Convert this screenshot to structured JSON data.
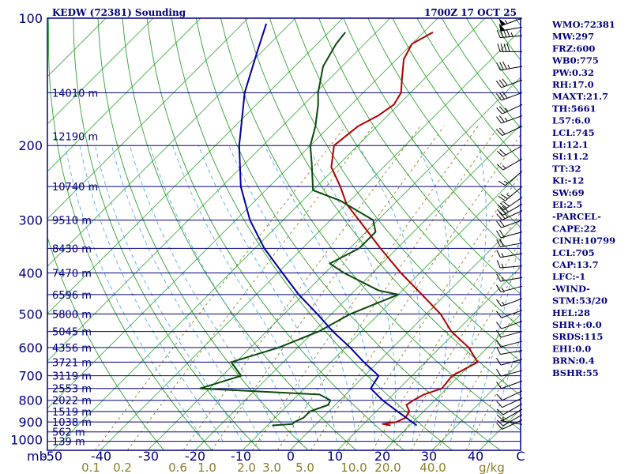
{
  "chart_data": {
    "type": "line",
    "title": "KEDW (72381) Sounding",
    "datetime": "1700Z 17 OCT 25",
    "pressure_ticks": [
      100,
      200,
      300,
      400,
      500,
      600,
      700,
      800,
      900,
      1000
    ],
    "pressure_unit_label": "mb",
    "temperature_ticks": [
      "-50",
      "-40",
      "-30",
      "-20",
      "-10",
      "0",
      "10",
      "20",
      "30",
      "40",
      "C"
    ],
    "mixing_ratio_ticks": [
      "0.1",
      "0.2",
      "0.6",
      "1.0",
      "2.0",
      "3.0",
      "5.0",
      "10.0",
      "20.0",
      "40.0",
      "g/kg"
    ],
    "height_labels": [
      {
        "p": 150,
        "label": "14010 m"
      },
      {
        "p": 190,
        "label": "12190 m"
      },
      {
        "p": 250,
        "label": "10740 m"
      },
      {
        "p": 300,
        "label": "9510 m"
      },
      {
        "p": 350,
        "label": "8430 m"
      },
      {
        "p": 400,
        "label": "7470 m"
      },
      {
        "p": 450,
        "label": "6596 m"
      },
      {
        "p": 500,
        "label": "5800 m"
      },
      {
        "p": 550,
        "label": "5045 m"
      },
      {
        "p": 600,
        "label": "4356 m"
      },
      {
        "p": 650,
        "label": "3721 m"
      },
      {
        "p": 700,
        "label": "3119 m"
      },
      {
        "p": 750,
        "label": "2553 m"
      },
      {
        "p": 800,
        "label": "2022 m"
      },
      {
        "p": 850,
        "label": "1519 m"
      },
      {
        "p": 900,
        "label": "1038 m"
      },
      {
        "p": 950,
        "label": "562 m"
      },
      {
        "p": 1000,
        "label": "139 m"
      }
    ],
    "series": [
      {
        "key": "temperature",
        "color": "#b00000",
        "points": [
          [
            917,
            16.0
          ],
          [
            910,
            14.0
          ],
          [
            900,
            16.5
          ],
          [
            880,
            17.5
          ],
          [
            850,
            17.0
          ],
          [
            820,
            15.0
          ],
          [
            800,
            15.5
          ],
          [
            775,
            16.5
          ],
          [
            750,
            19.0
          ],
          [
            700,
            18.5
          ],
          [
            650,
            21.0
          ],
          [
            600,
            16.0
          ],
          [
            550,
            9.0
          ],
          [
            500,
            3.0
          ],
          [
            450,
            -5.0
          ],
          [
            400,
            -14.0
          ],
          [
            350,
            -23.5
          ],
          [
            300,
            -34.0
          ],
          [
            275,
            -40.0
          ],
          [
            250,
            -45.0
          ],
          [
            225,
            -51.0
          ],
          [
            200,
            -55.0
          ],
          [
            180,
            -54.0
          ],
          [
            170,
            -52.0
          ],
          [
            160,
            -51.0
          ],
          [
            150,
            -52.0
          ],
          [
            140,
            -54.5
          ],
          [
            125,
            -58.5
          ],
          [
            115,
            -60.0
          ],
          [
            108,
            -58.0
          ]
        ]
      },
      {
        "key": "dewpoint",
        "color": "#0a4a0a",
        "points": [
          [
            917,
            -9.0
          ],
          [
            910,
            -5.0
          ],
          [
            900,
            -5.0
          ],
          [
            880,
            -4.0
          ],
          [
            850,
            -4.0
          ],
          [
            820,
            -1.5
          ],
          [
            800,
            -2.0
          ],
          [
            775,
            -5.5
          ],
          [
            750,
            -32.0
          ],
          [
            700,
            -26.0
          ],
          [
            650,
            -31.0
          ],
          [
            600,
            -24.0
          ],
          [
            550,
            -19.0
          ],
          [
            500,
            -16.0
          ],
          [
            450,
            -10.0
          ],
          [
            440,
            -15.0
          ],
          [
            400,
            -26.0
          ],
          [
            380,
            -31.0
          ],
          [
            350,
            -28.0
          ],
          [
            320,
            -28.0
          ],
          [
            300,
            -31.0
          ],
          [
            270,
            -42.0
          ],
          [
            255,
            -50.0
          ],
          [
            220,
            -56.0
          ],
          [
            200,
            -60.0
          ],
          [
            180,
            -63.0
          ],
          [
            160,
            -67.0
          ],
          [
            150,
            -69.5
          ],
          [
            130,
            -74.0
          ],
          [
            115,
            -76.0
          ],
          [
            108,
            -76.5
          ]
        ]
      },
      {
        "key": "parcel",
        "color": "#0000a0",
        "points": [
          [
            917,
            21.5
          ],
          [
            850,
            14.5
          ],
          [
            800,
            9.0
          ],
          [
            750,
            4.0
          ],
          [
            700,
            3.0
          ],
          [
            650,
            -3.0
          ],
          [
            600,
            -9.0
          ],
          [
            550,
            -16.0
          ],
          [
            500,
            -23.0
          ],
          [
            450,
            -31.0
          ],
          [
            400,
            -39.0
          ],
          [
            350,
            -48.0
          ],
          [
            300,
            -57.0
          ],
          [
            250,
            -66.0
          ],
          [
            200,
            -75.0
          ],
          [
            150,
            -85.0
          ],
          [
            120,
            -91.0
          ],
          [
            103,
            -95.0
          ]
        ]
      }
    ],
    "wind_barbs": [
      {
        "p": 100,
        "dir": 250,
        "spd": 55
      },
      {
        "p": 105,
        "dir": 260,
        "spd": 50
      },
      {
        "p": 110,
        "dir": 265,
        "spd": 45
      },
      {
        "p": 120,
        "dir": 270,
        "spd": 40
      },
      {
        "p": 130,
        "dir": 260,
        "spd": 35
      },
      {
        "p": 140,
        "dir": 250,
        "spd": 30
      },
      {
        "p": 150,
        "dir": 250,
        "spd": 30
      },
      {
        "p": 160,
        "dir": 245,
        "spd": 25
      },
      {
        "p": 170,
        "dir": 250,
        "spd": 25
      },
      {
        "p": 180,
        "dir": 245,
        "spd": 20
      },
      {
        "p": 200,
        "dir": 240,
        "spd": 20
      },
      {
        "p": 215,
        "dir": 240,
        "spd": 15
      },
      {
        "p": 230,
        "dir": 230,
        "spd": 15
      },
      {
        "p": 250,
        "dir": 230,
        "spd": 25
      },
      {
        "p": 265,
        "dir": 235,
        "spd": 30
      },
      {
        "p": 275,
        "dir": 240,
        "spd": 30
      },
      {
        "p": 285,
        "dir": 245,
        "spd": 25
      },
      {
        "p": 300,
        "dir": 250,
        "spd": 20
      },
      {
        "p": 320,
        "dir": 255,
        "spd": 20
      },
      {
        "p": 340,
        "dir": 260,
        "spd": 20
      },
      {
        "p": 360,
        "dir": 260,
        "spd": 15
      },
      {
        "p": 385,
        "dir": 265,
        "spd": 15
      },
      {
        "p": 410,
        "dir": 260,
        "spd": 15
      },
      {
        "p": 430,
        "dir": 255,
        "spd": 15
      },
      {
        "p": 460,
        "dir": 250,
        "spd": 15
      },
      {
        "p": 490,
        "dir": 250,
        "spd": 10
      },
      {
        "p": 520,
        "dir": 250,
        "spd": 10
      },
      {
        "p": 550,
        "dir": 255,
        "spd": 10
      },
      {
        "p": 580,
        "dir": 255,
        "spd": 10
      },
      {
        "p": 610,
        "dir": 260,
        "spd": 10
      },
      {
        "p": 640,
        "dir": 255,
        "spd": 10
      },
      {
        "p": 680,
        "dir": 255,
        "spd": 10
      },
      {
        "p": 720,
        "dir": 250,
        "spd": 10
      },
      {
        "p": 760,
        "dir": 245,
        "spd": 10
      },
      {
        "p": 790,
        "dir": 245,
        "spd": 10
      },
      {
        "p": 815,
        "dir": 240,
        "spd": 10
      },
      {
        "p": 840,
        "dir": 240,
        "spd": 10
      },
      {
        "p": 865,
        "dir": 240,
        "spd": 10
      },
      {
        "p": 890,
        "dir": 245,
        "spd": 10
      },
      {
        "p": 912,
        "dir": 280,
        "spd": 5
      }
    ],
    "indices": [
      "WMO:72381",
      "MW:297",
      "FRZ:600",
      "WB0:775",
      "PW:0.32",
      "RH:17.0",
      "MAXT:21.7",
      "TH:5661",
      "L57:6.0",
      "LCL:745",
      "LI:12.1",
      "SI:11.2",
      "TT:32",
      "KI:-12",
      "SW:69",
      "EI:2.5",
      "-PARCEL-",
      "CAPE:22",
      "CINH:10799",
      "LCL:705",
      "CAP:13.7",
      "LFC:-1",
      "-WIND-",
      "STM:53/20",
      "HEL:28",
      "SHR+:0.0",
      "SRDS:115",
      "EHI:0.0",
      "BRN:0.4",
      "BSHR:55"
    ],
    "colors": {
      "frame": "#000080",
      "isobar": "#000080",
      "isotherm": "#5bb85b",
      "dry_adiabat": "#2ea02e",
      "moist_adiabat": "#55aaee",
      "mixing_ratio": "#8b7d2a"
    }
  }
}
